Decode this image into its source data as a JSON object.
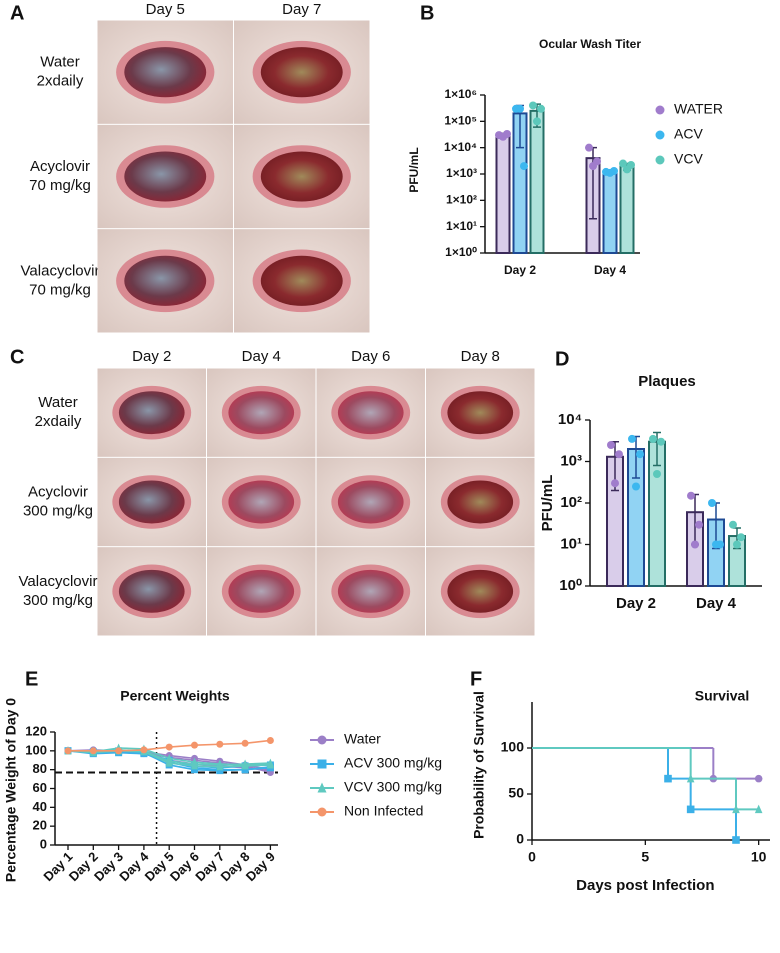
{
  "photo_panels": [
    {
      "panel": "A",
      "columns": [
        "Day 5",
        "Day 7"
      ],
      "rows": [
        [
          "Water",
          "2xdaily"
        ],
        [
          "Acyclovir",
          "70 mg/kg"
        ],
        [
          "Valacyclovir",
          "70 mg/kg"
        ]
      ]
    },
    {
      "panel": "C",
      "columns": [
        "Day 2",
        "Day 4",
        "Day 6",
        "Day 8"
      ],
      "rows": [
        [
          "Water",
          "2xdaily"
        ],
        [
          "Acyclovir",
          "300 mg/kg"
        ],
        [
          "Valacyclovir",
          "300 mg/kg"
        ]
      ]
    }
  ],
  "chart_data": [
    {
      "panel": "B",
      "type": "bar",
      "title": "Ocular  Wash  Titer",
      "y_label": "PFU/mL",
      "log_y": true,
      "categories": [
        "Day 2",
        "Day 4"
      ],
      "ylim": [
        1,
        1000000
      ],
      "yticks": [
        {
          "value": 1,
          "label": "1×10⁰"
        },
        {
          "value": 10,
          "label": "1×10¹"
        },
        {
          "value": 100,
          "label": "1×10²"
        },
        {
          "value": 1000,
          "label": "1×10³"
        },
        {
          "value": 10000,
          "label": "1×10⁴"
        },
        {
          "value": 100000,
          "label": "1×10⁵"
        },
        {
          "value": 1000000,
          "label": "1×10⁶"
        }
      ],
      "legend": "right",
      "series": [
        {
          "name": "WATER",
          "color": "#a07ccc",
          "fill": "#d9cdea",
          "edge": "#3b2a5a",
          "values": [
            30000,
            4000
          ],
          "error_low": [
            25000,
            20
          ],
          "error_high": [
            35000,
            10000
          ],
          "points": [
            [
              30000,
              26000,
              33000
            ],
            [
              10000,
              2000,
              3000
            ]
          ]
        },
        {
          "name": "ACV",
          "color": "#3cb7ef",
          "fill": "#91d3f3",
          "edge": "#1e4a94",
          "values": [
            200000,
            1200
          ],
          "error_low": [
            10000,
            1000
          ],
          "error_high": [
            400000,
            1400
          ],
          "points": [
            [
              300000,
              300000,
              2000
            ],
            [
              1200,
              1100,
              1300
            ]
          ]
        },
        {
          "name": "VCV",
          "color": "#5cc8bb",
          "fill": "#aee2da",
          "edge": "#246e66",
          "values": [
            250000,
            2000
          ],
          "error_low": [
            60000,
            1400
          ],
          "error_high": [
            450000,
            2500
          ],
          "points": [
            [
              400000,
              100000,
              300000
            ],
            [
              2500,
              1500,
              2200
            ]
          ]
        }
      ]
    },
    {
      "panel": "D",
      "type": "bar",
      "title": "Plaques",
      "y_label": "PFU/mL",
      "log_y": true,
      "categories": [
        "Day 2",
        "Day 4"
      ],
      "ylim": [
        1,
        10000
      ],
      "yticks": [
        {
          "value": 1,
          "label": "10⁰"
        },
        {
          "value": 10,
          "label": "10¹"
        },
        {
          "value": 100,
          "label": "10²"
        },
        {
          "value": 1000,
          "label": "10³"
        },
        {
          "value": 10000,
          "label": "10⁴"
        }
      ],
      "series": [
        {
          "color": "#a07ccc",
          "fill": "#d9cdea",
          "edge": "#3b2a5a",
          "values": [
            1300,
            60
          ],
          "error_low": [
            200,
            10
          ],
          "error_high": [
            3000,
            160
          ],
          "points": [
            [
              2500,
              300,
              1500
            ],
            [
              150,
              10,
              30
            ]
          ]
        },
        {
          "color": "#3cb7ef",
          "fill": "#91d3f3",
          "edge": "#1e4a94",
          "values": [
            2000,
            40
          ],
          "error_low": [
            400,
            8
          ],
          "error_high": [
            4000,
            100
          ],
          "points": [
            [
              3500,
              250,
              1500
            ],
            [
              100,
              10,
              10
            ]
          ]
        },
        {
          "color": "#5cc8bb",
          "fill": "#aee2da",
          "edge": "#246e66",
          "values": [
            3000,
            16
          ],
          "error_low": [
            800,
            8
          ],
          "error_high": [
            5000,
            25
          ],
          "points": [
            [
              3500,
              500,
              3000
            ],
            [
              30,
              10,
              15
            ]
          ]
        }
      ]
    },
    {
      "panel": "E",
      "type": "line",
      "title": "Percent Weights",
      "y_label": "Percentage Weight of Day 0",
      "categories": [
        "Day 1",
        "Day 2",
        "Day 3",
        "Day 4",
        "Day 5",
        "Day 6",
        "Day 7",
        "Day 8",
        "Day 9"
      ],
      "ylim": [
        0,
        120
      ],
      "yticks": [
        0,
        20,
        40,
        60,
        80,
        100,
        120
      ],
      "hline": 77,
      "vline": 3.5,
      "legend": "right",
      "series": [
        {
          "name": "Water",
          "color": "#9b7fc7",
          "marker": "circle",
          "values": [
            [
              100,
              100,
              99,
              98,
              93,
              90,
              87,
              84,
              77
            ],
            [
              100,
              101,
              100,
              99,
              95,
              92,
              89,
              85,
              80
            ],
            [
              100,
              100,
              99,
              97,
              90,
              86,
              84,
              82,
              79
            ]
          ]
        },
        {
          "name": "ACV 300 mg/kg",
          "color": "#3bb0e8",
          "marker": "square",
          "values": [
            [
              100,
              97,
              98,
              97,
              88,
              82,
              80,
              80,
              83
            ],
            [
              100,
              98,
              99,
              98,
              85,
              80,
              79,
              80,
              82
            ],
            [
              100,
              99,
              100,
              99,
              90,
              84,
              82,
              84,
              85
            ]
          ]
        },
        {
          "name": "VCV 300 mg/kg",
          "color": "#5fc9c0",
          "marker": "triangle",
          "values": [
            [
              100,
              99,
              103,
              102,
              92,
              88,
              86,
              85,
              86
            ],
            [
              100,
              100,
              101,
              100,
              89,
              86,
              85,
              86,
              87
            ],
            [
              100,
              98,
              100,
              99,
              87,
              84,
              83,
              84,
              85
            ]
          ]
        },
        {
          "name": "Non Infected",
          "color": "#f4956a",
          "marker": "circle",
          "values": [
            [
              100,
              100,
              100,
              101,
              104,
              106,
              107,
              108,
              111
            ]
          ]
        }
      ]
    },
    {
      "panel": "F",
      "type": "step",
      "title": "Survival",
      "x_label": "Days post Infection",
      "y_label": "Probability of Survival",
      "xlim": [
        0,
        10.5
      ],
      "xticks": [
        0,
        5,
        10
      ],
      "ylim": [
        0,
        150
      ],
      "yticks": [
        0,
        50,
        100
      ],
      "series": [
        {
          "color": "#9b7fc7",
          "marker": "circle",
          "x": [
            0,
            8,
            10
          ],
          "values": [
            100,
            66.7,
            66.7
          ]
        },
        {
          "color": "#3bb0e8",
          "marker": "square",
          "x": [
            0,
            6,
            7,
            9
          ],
          "values": [
            100,
            66.7,
            33.3,
            0
          ]
        },
        {
          "color": "#5fc9c0",
          "marker": "triangle",
          "x": [
            0,
            7,
            9,
            10
          ],
          "values": [
            100,
            66.7,
            33.3,
            33.3
          ]
        }
      ]
    }
  ]
}
